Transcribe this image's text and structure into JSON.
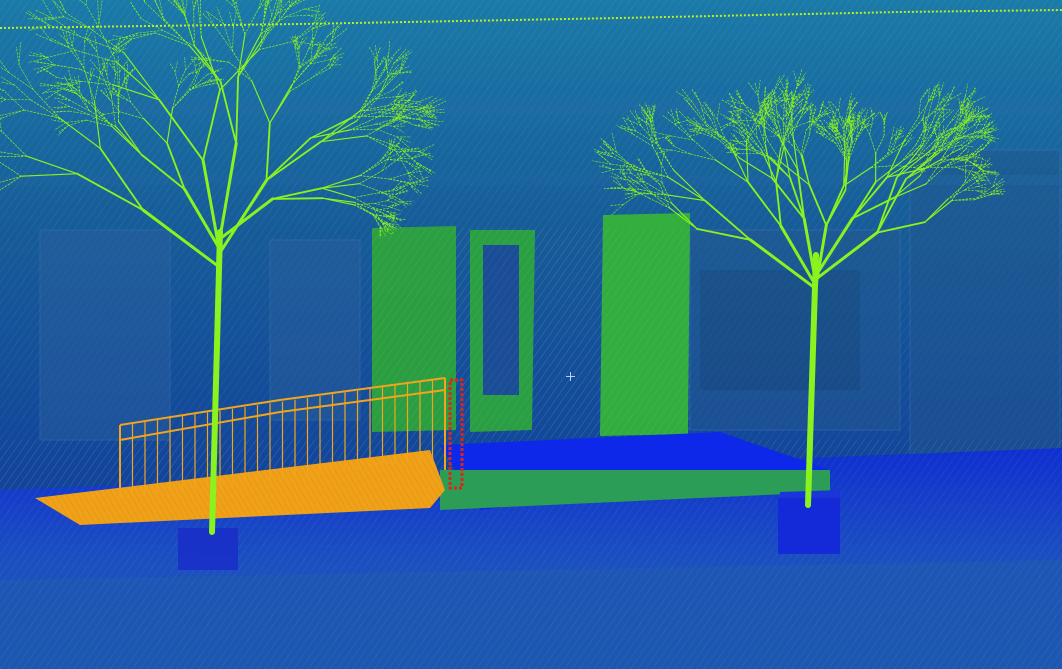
{
  "viewer": {
    "type": "point-cloud-viewport",
    "colormap": [
      "#0a1fe0",
      "#1560c8",
      "#1ba04a",
      "#7ef21b",
      "#f5a81a",
      "#e0231b"
    ],
    "background_color": "#0a2f7a",
    "cursor_icon": "crosshair-icon"
  }
}
